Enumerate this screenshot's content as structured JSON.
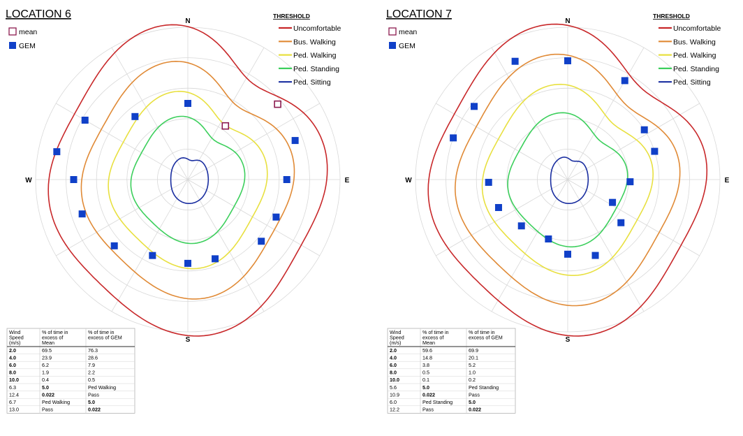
{
  "chart_data": [
    {
      "type": "polar",
      "title": "LOCATION 6",
      "directions": [
        "N",
        "E",
        "S",
        "W"
      ],
      "legend_left": [
        {
          "label": "mean",
          "marker": "open-square",
          "color": "#8b1a4f"
        },
        {
          "label": "GEM",
          "marker": "filled-square",
          "color": "#1040c8"
        }
      ],
      "threshold_title": "THRESHOLD",
      "thresholds": [
        {
          "name": "Uncomfortable",
          "color": "#c8282a"
        },
        {
          "name": "Bus. Walking",
          "color": "#e08a36"
        },
        {
          "name": "Ped. Walking",
          "color": "#e8e040"
        },
        {
          "name": "Ped. Standing",
          "color": "#3ccf5c"
        },
        {
          "name": "Ped. Sitting",
          "color": "#1a2ea0"
        }
      ],
      "gem_points": [
        {
          "bearing": 0,
          "r": 0.5
        },
        {
          "bearing": 320,
          "r": 0.54
        },
        {
          "bearing": 300,
          "r": 0.78
        },
        {
          "bearing": 282,
          "r": 0.88
        },
        {
          "bearing": 270,
          "r": 0.75
        },
        {
          "bearing": 252,
          "r": 0.73
        },
        {
          "bearing": 228,
          "r": 0.65
        },
        {
          "bearing": 205,
          "r": 0.55
        },
        {
          "bearing": 180,
          "r": 0.55
        },
        {
          "bearing": 161,
          "r": 0.55
        },
        {
          "bearing": 130,
          "r": 0.63
        },
        {
          "bearing": 113,
          "r": 0.63
        },
        {
          "bearing": 90,
          "r": 0.65
        },
        {
          "bearing": 70,
          "r": 0.75
        }
      ],
      "mean_points": [
        {
          "bearing": 35,
          "r": 0.43
        },
        {
          "bearing": 50,
          "r": 0.77
        }
      ],
      "table": {
        "headers": [
          "Wind Speed (m/s)",
          "% of time in excess of Mean",
          "% of time in excess of GEM"
        ],
        "rows": [
          [
            {
              "v": "2.0",
              "b": true
            },
            {
              "v": "69.5"
            },
            {
              "v": "76.3"
            }
          ],
          [
            {
              "v": "4.0",
              "b": true
            },
            {
              "v": "23.9"
            },
            {
              "v": "28.6"
            }
          ],
          [
            {
              "v": "6.0",
              "b": true
            },
            {
              "v": "6.2"
            },
            {
              "v": "7.9"
            }
          ],
          [
            {
              "v": "8.0",
              "b": true
            },
            {
              "v": "1.9"
            },
            {
              "v": "2.2"
            }
          ],
          [
            {
              "v": "10.0",
              "b": true
            },
            {
              "v": "0.4"
            },
            {
              "v": "0.5"
            }
          ],
          [
            {
              "v": "6.3"
            },
            {
              "v": "5.0",
              "b": true
            },
            {
              "v": "Ped Walking"
            }
          ],
          [
            {
              "v": "12.4"
            },
            {
              "v": "0.022",
              "b": true
            },
            {
              "v": "Pass"
            }
          ],
          [
            {
              "v": "6.7"
            },
            {
              "v": "Ped Walking"
            },
            {
              "v": "5.0",
              "b": true
            }
          ],
          [
            {
              "v": "13.0"
            },
            {
              "v": "Pass"
            },
            {
              "v": "0.022",
              "b": true
            }
          ]
        ]
      }
    },
    {
      "type": "polar",
      "title": "LOCATION 7",
      "directions": [
        "N",
        "E",
        "S",
        "W"
      ],
      "legend_left": [
        {
          "label": "mean",
          "marker": "open-square",
          "color": "#8b1a4f"
        },
        {
          "label": "GEM",
          "marker": "filled-square",
          "color": "#1040c8"
        }
      ],
      "threshold_title": "THRESHOLD",
      "thresholds": [
        {
          "name": "Uncomfortable",
          "color": "#c8282a"
        },
        {
          "name": "Bus. Walking",
          "color": "#e08a36"
        },
        {
          "name": "Ped. Walking",
          "color": "#e8e040"
        },
        {
          "name": "Ped. Standing",
          "color": "#3ccf5c"
        },
        {
          "name": "Ped. Sitting",
          "color": "#1a2ea0"
        }
      ],
      "gem_points": [
        {
          "bearing": 0,
          "r": 0.78
        },
        {
          "bearing": 336,
          "r": 0.85
        },
        {
          "bearing": 308,
          "r": 0.78
        },
        {
          "bearing": 290,
          "r": 0.8
        },
        {
          "bearing": 268,
          "r": 0.52
        },
        {
          "bearing": 248,
          "r": 0.49
        },
        {
          "bearing": 225,
          "r": 0.43
        },
        {
          "bearing": 198,
          "r": 0.41
        },
        {
          "bearing": 180,
          "r": 0.49
        },
        {
          "bearing": 160,
          "r": 0.53
        },
        {
          "bearing": 129,
          "r": 0.45
        },
        {
          "bearing": 117,
          "r": 0.33
        },
        {
          "bearing": 92,
          "r": 0.41
        },
        {
          "bearing": 72,
          "r": 0.6
        },
        {
          "bearing": 57,
          "r": 0.6
        },
        {
          "bearing": 30,
          "r": 0.75
        }
      ],
      "mean_points": [],
      "table": {
        "headers": [
          "Wind Speed (m/s)",
          "% of time in excess of Mean",
          "% of time in excess of GEM"
        ],
        "rows": [
          [
            {
              "v": "2.0",
              "b": true
            },
            {
              "v": "59.6"
            },
            {
              "v": "69.9"
            }
          ],
          [
            {
              "v": "4.0",
              "b": true
            },
            {
              "v": "14.8"
            },
            {
              "v": "20.1"
            }
          ],
          [
            {
              "v": "6.0",
              "b": true
            },
            {
              "v": "3.8"
            },
            {
              "v": "5.2"
            }
          ],
          [
            {
              "v": "8.0",
              "b": true
            },
            {
              "v": "0.5"
            },
            {
              "v": "1.0"
            }
          ],
          [
            {
              "v": "10.0",
              "b": true
            },
            {
              "v": "0.1"
            },
            {
              "v": "0.2"
            }
          ],
          [
            {
              "v": "5.6"
            },
            {
              "v": "5.0",
              "b": true
            },
            {
              "v": "Ped Standing"
            }
          ],
          [
            {
              "v": "10.9"
            },
            {
              "v": "0.022",
              "b": true
            },
            {
              "v": "Pass"
            }
          ],
          [
            {
              "v": "6.0"
            },
            {
              "v": "Ped Standing"
            },
            {
              "v": "5.0",
              "b": true
            }
          ],
          [
            {
              "v": "12.2"
            },
            {
              "v": "Pass"
            },
            {
              "v": "0.022",
              "b": true
            }
          ]
        ]
      }
    }
  ]
}
